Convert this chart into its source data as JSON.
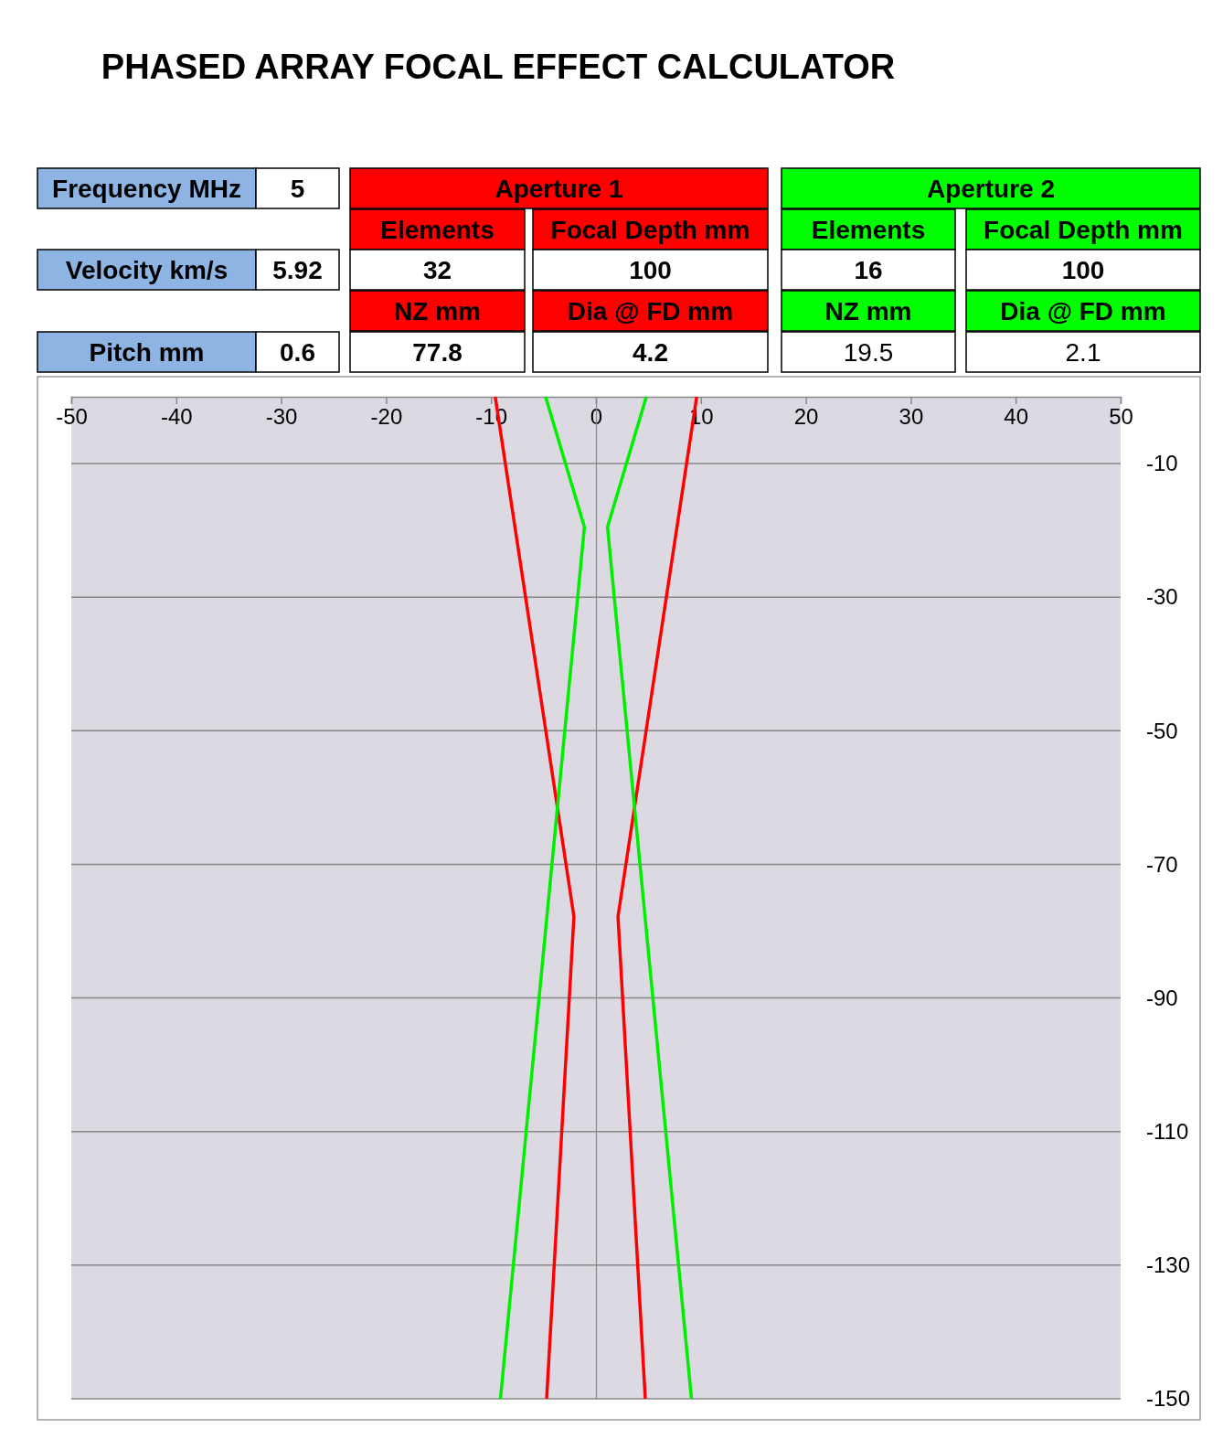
{
  "chart_data": {
    "type": "line",
    "title": "PHASED ARRAY FOCAL EFFECT CALCULATOR",
    "annotations": [
      "Frequency MHz",
      "5",
      "Velocity km/s",
      "5.92",
      "Pitch mm",
      "0.6",
      "Aperture 1",
      "Elements",
      "Focal Depth mm",
      "32",
      "100",
      "NZ mm",
      "Dia @ FD mm",
      "77.8",
      "4.2",
      "Aperture 2",
      "Elements",
      "Focal Depth mm",
      "16",
      "100",
      "NZ mm",
      "Dia @ FD mm",
      "19.5",
      "2.1"
    ],
    "series": [
      {
        "color": "#ff0000",
        "x": [
          -9.6,
          -2.1,
          -4.7
        ],
        "values": [
          0,
          -77.8,
          -150
        ]
      },
      {
        "color": "#ff0000",
        "x": [
          9.6,
          2.1,
          4.7
        ],
        "values": [
          0,
          -77.8,
          -150
        ]
      },
      {
        "color": "#00ee00",
        "x": [
          -4.8,
          -1.1,
          -9.1
        ],
        "values": [
          0,
          -19.5,
          -150
        ]
      },
      {
        "color": "#00ee00",
        "x": [
          4.8,
          1.1,
          9.1
        ],
        "values": [
          0,
          -19.5,
          -150
        ]
      }
    ],
    "xlim": [
      -50,
      50
    ],
    "xticks": [
      -50,
      -40,
      -30,
      -20,
      -10,
      0,
      10,
      20,
      30,
      40,
      50
    ],
    "ylim": [
      -150,
      0
    ],
    "yticks": [
      -10,
      -30,
      -50,
      -70,
      -90,
      -110,
      -130,
      -150
    ],
    "grid": "y"
  }
}
